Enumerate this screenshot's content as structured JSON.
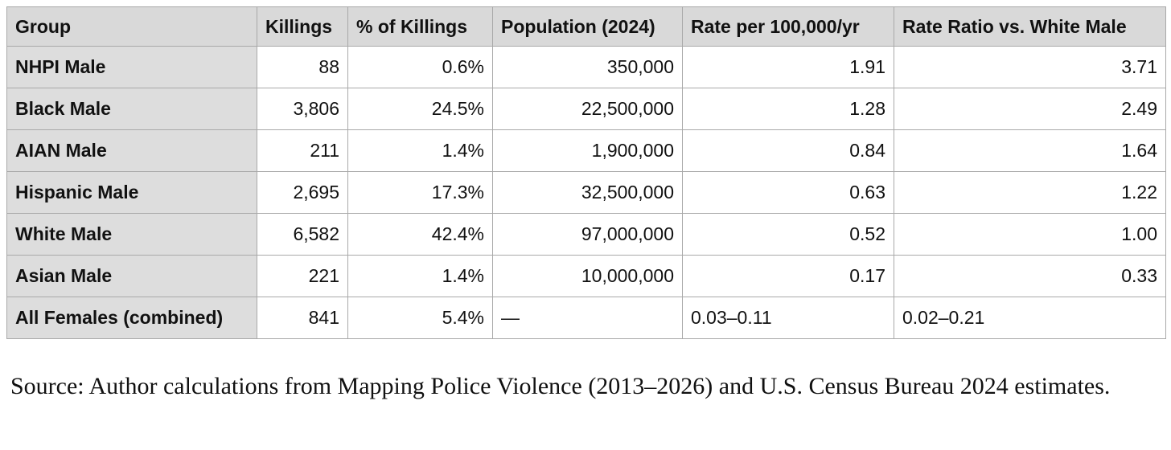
{
  "table": {
    "header": [
      "Group",
      "Killings",
      "% of Killings",
      "Population (2024)",
      "Rate per 100,000/yr",
      "Rate Ratio vs. White Male"
    ],
    "rows": [
      [
        "NHPI Male",
        "88",
        "0.6%",
        "350,000",
        "1.91",
        "3.71"
      ],
      [
        "Black Male",
        "3,806",
        "24.5%",
        "22,500,000",
        "1.28",
        "2.49"
      ],
      [
        "AIAN Male",
        "211",
        "1.4%",
        "1,900,000",
        "0.84",
        "1.64"
      ],
      [
        "Hispanic Male",
        "2,695",
        "17.3%",
        "32,500,000",
        "0.63",
        "1.22"
      ],
      [
        "White Male",
        "6,582",
        "42.4%",
        "97,000,000",
        "0.52",
        "1.00"
      ],
      [
        "Asian Male",
        "221",
        "1.4%",
        "10,000,000",
        "0.17",
        "0.33"
      ],
      [
        "All Females (combined)",
        "841",
        "5.4%",
        "—",
        "0.03–0.11",
        "0.02–0.21"
      ]
    ]
  },
  "source": "Source: Author calculations from Mapping Police Violence (2013–2026) and U.S. Census Bureau 2024 estimates."
}
